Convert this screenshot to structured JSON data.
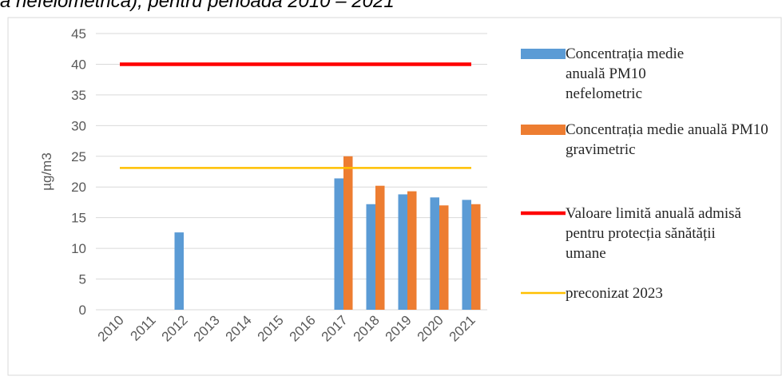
{
  "chart_data": {
    "type": "bar",
    "title": "a nefelometrică), pentru perioada 2010 – 2021",
    "ylabel": "µg/m3",
    "categories": [
      "2010",
      "2011",
      "2012",
      "2013",
      "2014",
      "2015",
      "2016",
      "2017",
      "2018",
      "2019",
      "2020",
      "2021"
    ],
    "series": [
      {
        "name": "Concentrația medie anuală PM10 nefelometric",
        "type": "bar",
        "color": "#5b9bd5",
        "values": [
          null,
          null,
          12.6,
          null,
          null,
          null,
          null,
          21.4,
          17.2,
          18.8,
          18.3,
          17.9
        ]
      },
      {
        "name": "Concentrația medie anuală PM10 gravimetric",
        "type": "bar",
        "color": "#ed7d31",
        "values": [
          null,
          null,
          null,
          null,
          null,
          null,
          null,
          25.0,
          20.2,
          19.3,
          17.0,
          17.2
        ]
      },
      {
        "name": "Valoare limită anuală admisă pentru protecția sănătății umane",
        "type": "line",
        "color": "#ff0000",
        "values": [
          40,
          40,
          40,
          40,
          40,
          40,
          40,
          40,
          40,
          40,
          40,
          40
        ]
      },
      {
        "name": "preconizat 2023",
        "type": "line",
        "color": "#ffc000",
        "values": [
          23.1,
          23.1,
          23.1,
          23.1,
          23.1,
          23.1,
          23.1,
          23.1,
          23.1,
          23.1,
          23.1,
          23.1
        ]
      }
    ],
    "ylim": [
      0,
      45
    ],
    "yticks": [
      0,
      5,
      10,
      15,
      20,
      25,
      30,
      35,
      40,
      45
    ],
    "grid": true,
    "legend": "right"
  }
}
